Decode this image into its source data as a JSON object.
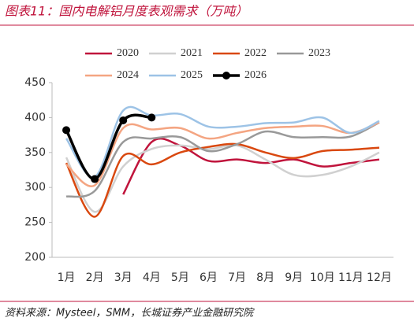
{
  "chart_data": {
    "type": "line",
    "title": "图表11：国内电解铝月度表观需求（万吨）",
    "source": "资料来源：Mysteel，SMM，长城证券产业金融研究院",
    "categories": [
      "1月",
      "2月",
      "3月",
      "4月",
      "5月",
      "6月",
      "7月",
      "8月",
      "9月",
      "10月",
      "11月",
      "12月"
    ],
    "series": [
      {
        "name": "2020",
        "color": "#c0143c",
        "values": [
          null,
          null,
          290,
          365,
          360,
          338,
          340,
          335,
          340,
          330,
          335,
          340
        ]
      },
      {
        "name": "2021",
        "color": "#d0d0d0",
        "values": [
          343,
          265,
          330,
          355,
          360,
          355,
          360,
          340,
          318,
          318,
          330,
          350
        ]
      },
      {
        "name": "2022",
        "color": "#d9480f",
        "values": [
          335,
          258,
          345,
          333,
          350,
          358,
          362,
          350,
          342,
          352,
          354,
          357
        ]
      },
      {
        "name": "2023",
        "color": "#999999",
        "values": [
          287,
          295,
          365,
          370,
          372,
          352,
          362,
          380,
          372,
          372,
          373,
          393
        ]
      },
      {
        "name": "2024",
        "color": "#f4a582",
        "values": [
          333,
          303,
          385,
          383,
          385,
          370,
          378,
          385,
          387,
          388,
          378,
          393
        ]
      },
      {
        "name": "2025",
        "color": "#9dc3e6",
        "values": [
          370,
          315,
          410,
          403,
          405,
          387,
          387,
          392,
          393,
          400,
          378,
          395
        ]
      },
      {
        "name": "2026",
        "color": "#000000",
        "markers": true,
        "values": [
          382,
          312,
          396,
          400,
          null,
          null,
          null,
          null,
          null,
          null,
          null,
          null
        ]
      }
    ],
    "ylim": [
      200,
      450
    ],
    "yticks": [
      200,
      250,
      300,
      350,
      400,
      450
    ]
  }
}
